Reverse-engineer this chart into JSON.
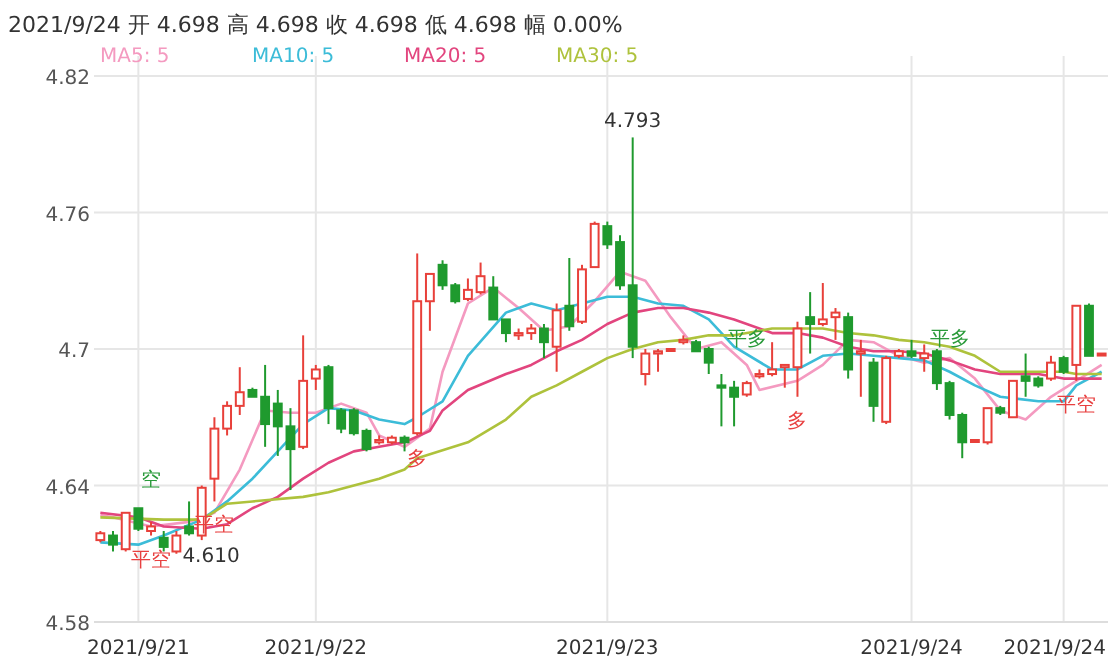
{
  "chart_data": {
    "type": "candlestick",
    "title": "2021/9/24 开 4.698 高 4.698 收 4.698 低 4.698 幅 0.00%",
    "categories": [
      null,
      null,
      null,
      "2021/9/21",
      null,
      null,
      null,
      null,
      null,
      null,
      null,
      null,
      null,
      null,
      null,
      null,
      null,
      "2021/9/22",
      null,
      null,
      null,
      null,
      null,
      null,
      null,
      null,
      null,
      null,
      null,
      null,
      null,
      null,
      null,
      null,
      null,
      null,
      null,
      null,
      null,
      null,
      "2021/9/23",
      null,
      null,
      null,
      null,
      null,
      null,
      null,
      null,
      null,
      null,
      null,
      null,
      null,
      null,
      null,
      null,
      null,
      null,
      null,
      null,
      null,
      null,
      null,
      "2021/9/24",
      null,
      null,
      null,
      null,
      null,
      null,
      null,
      null,
      null,
      null,
      null,
      "2021/9/24",
      null,
      null,
      null
    ],
    "ohlc": [
      [
        4.616,
        4.62,
        4.615,
        4.619
      ],
      [
        4.618,
        4.62,
        4.611,
        4.614
      ],
      [
        4.612,
        4.628,
        4.611,
        4.628
      ],
      [
        4.63,
        4.63,
        4.62,
        4.621
      ],
      [
        4.62,
        4.624,
        4.618,
        4.622
      ],
      [
        4.617,
        4.62,
        4.611,
        4.613
      ],
      [
        4.611,
        4.62,
        4.61,
        4.618
      ],
      [
        4.622,
        4.633,
        4.618,
        4.619
      ],
      [
        4.618,
        4.64,
        4.616,
        4.639
      ],
      [
        4.643,
        4.67,
        4.633,
        4.665
      ],
      [
        4.665,
        4.677,
        4.662,
        4.675
      ],
      [
        4.675,
        4.692,
        4.671,
        4.681
      ],
      [
        4.682,
        4.683,
        4.679,
        4.679
      ],
      [
        4.679,
        4.693,
        4.657,
        4.667
      ],
      [
        4.676,
        4.682,
        4.653,
        4.666
      ],
      [
        4.666,
        4.674,
        4.638,
        4.656
      ],
      [
        4.657,
        4.706,
        4.656,
        4.686
      ],
      [
        4.687,
        4.693,
        4.682,
        4.691
      ],
      [
        4.692,
        4.693,
        4.667,
        4.674
      ],
      [
        4.673,
        4.674,
        4.663,
        4.665
      ],
      [
        4.673,
        4.674,
        4.662,
        4.663
      ],
      [
        4.664,
        4.665,
        4.655,
        4.656
      ],
      [
        4.659,
        4.662,
        4.658,
        4.66
      ],
      [
        4.659,
        4.662,
        4.658,
        4.661
      ],
      [
        4.661,
        4.662,
        4.655,
        4.659
      ],
      [
        4.663,
        4.742,
        4.662,
        4.721
      ],
      [
        4.721,
        4.733,
        4.708,
        4.733
      ],
      [
        4.737,
        4.739,
        4.726,
        4.728
      ],
      [
        4.728,
        4.729,
        4.72,
        4.721
      ],
      [
        4.722,
        4.731,
        4.721,
        4.726
      ],
      [
        4.725,
        4.738,
        4.724,
        4.732
      ],
      [
        4.727,
        4.732,
        4.713,
        4.713
      ],
      [
        4.713,
        4.713,
        4.703,
        4.707
      ],
      [
        4.706,
        4.709,
        4.704,
        4.707
      ],
      [
        4.707,
        4.711,
        4.704,
        4.709
      ],
      [
        4.709,
        4.711,
        4.696,
        4.703
      ],
      [
        4.701,
        4.72,
        4.69,
        4.717
      ],
      [
        4.719,
        4.74,
        4.708,
        4.71
      ],
      [
        4.712,
        4.737,
        4.711,
        4.735
      ],
      [
        4.736,
        4.756,
        4.736,
        4.755
      ],
      [
        4.754,
        4.756,
        4.744,
        4.746
      ],
      [
        4.747,
        4.75,
        4.726,
        4.728
      ],
      [
        4.728,
        4.793,
        4.696,
        4.701
      ],
      [
        4.689,
        4.7,
        4.684,
        4.698
      ],
      [
        4.698,
        4.7,
        4.69,
        4.699
      ],
      [
        4.7,
        4.7,
        4.7,
        4.7
      ],
      [
        4.703,
        4.706,
        4.702,
        4.704
      ],
      [
        4.703,
        4.704,
        4.699,
        4.699
      ],
      [
        4.7,
        4.701,
        4.689,
        4.694
      ],
      [
        4.684,
        4.689,
        4.666,
        4.683
      ],
      [
        4.683,
        4.686,
        4.666,
        4.679
      ],
      [
        4.68,
        4.686,
        4.679,
        4.685
      ],
      [
        4.688,
        4.691,
        4.687,
        4.689
      ],
      [
        4.689,
        4.703,
        4.688,
        4.691
      ],
      [
        4.692,
        4.693,
        4.683,
        4.693
      ],
      [
        4.692,
        4.712,
        4.679,
        4.709
      ],
      [
        4.714,
        4.725,
        4.698,
        4.711
      ],
      [
        4.711,
        4.729,
        4.71,
        4.713
      ],
      [
        4.714,
        4.718,
        4.704,
        4.716
      ],
      [
        4.714,
        4.716,
        4.687,
        4.691
      ],
      [
        4.698,
        4.704,
        4.679,
        4.699
      ],
      [
        4.694,
        4.696,
        4.668,
        4.675
      ],
      [
        4.668,
        4.697,
        4.667,
        4.696
      ],
      [
        4.697,
        4.7,
        4.696,
        4.699
      ],
      [
        4.699,
        4.704,
        4.696,
        4.697
      ],
      [
        4.696,
        4.702,
        4.69,
        4.698
      ],
      [
        4.699,
        4.7,
        4.682,
        4.685
      ],
      [
        4.685,
        4.686,
        4.669,
        4.671
      ],
      [
        4.671,
        4.672,
        4.652,
        4.659
      ],
      [
        4.66,
        4.66,
        4.659,
        4.66
      ],
      [
        4.659,
        4.674,
        4.658,
        4.674
      ],
      [
        4.674,
        4.675,
        4.671,
        4.672
      ],
      [
        4.67,
        4.686,
        4.67,
        4.686
      ],
      [
        4.688,
        4.698,
        4.679,
        4.686
      ],
      [
        4.687,
        4.688,
        4.683,
        4.684
      ],
      [
        4.687,
        4.697,
        4.686,
        4.694
      ],
      [
        4.696,
        4.697,
        4.689,
        4.69
      ],
      [
        4.693,
        4.719,
        4.686,
        4.719
      ],
      [
        4.719,
        4.72,
        4.697,
        4.697
      ],
      [
        4.698,
        4.698,
        4.698,
        4.698
      ]
    ],
    "series": [
      {
        "name": "MA5: 5",
        "type": "line",
        "color": "#f49ac0",
        "values": [
          4.627,
          4.626,
          null,
          null,
          4.622,
          null,
          null,
          4.624,
          null,
          4.628,
          null,
          4.647,
          null,
          4.673,
          null,
          4.672,
          null,
          4.672,
          null,
          4.676,
          null,
          4.672,
          4.662,
          null,
          4.657,
          null,
          4.665,
          4.69,
          null,
          4.72,
          null,
          4.727,
          null,
          4.718,
          null,
          4.708,
          null,
          4.71,
          null,
          4.721,
          null,
          4.734,
          null,
          4.73,
          null,
          4.714,
          null,
          4.7,
          null,
          4.703,
          null,
          4.693,
          4.682,
          null,
          null,
          4.686,
          null,
          4.693,
          null,
          4.704,
          null,
          4.703,
          null,
          4.697,
          null,
          4.694,
          null,
          4.696,
          null,
          4.687,
          null,
          4.673,
          null,
          4.669,
          null,
          4.679,
          null,
          4.686,
          null,
          4.693
        ]
      },
      {
        "name": "MA10: 5",
        "type": "line",
        "color": "#3cbcd8",
        "values": [
          4.615,
          null,
          null,
          4.614,
          null,
          4.618,
          null,
          null,
          4.625,
          null,
          4.633,
          null,
          4.643,
          null,
          4.655,
          null,
          4.667,
          null,
          4.674,
          null,
          4.673,
          null,
          4.669,
          null,
          4.667,
          4.67,
          null,
          4.677,
          null,
          4.697,
          null,
          null,
          4.716,
          null,
          4.72,
          null,
          4.717,
          null,
          4.72,
          null,
          4.723,
          null,
          4.723,
          null,
          4.72,
          null,
          4.719,
          null,
          4.713,
          null,
          4.701,
          null,
          null,
          4.691,
          null,
          4.691,
          null,
          4.697,
          null,
          4.698,
          null,
          4.697,
          null,
          4.696,
          null,
          4.695,
          null,
          4.69,
          null,
          4.684,
          null,
          4.679,
          null,
          null,
          4.677,
          null,
          4.677,
          4.684,
          null,
          4.69
        ]
      },
      {
        "name": "MA20: 5",
        "type": "line",
        "color": "#e2457e",
        "values": [
          4.628,
          null,
          null,
          4.626,
          null,
          4.622,
          null,
          null,
          4.621,
          null,
          4.623,
          null,
          4.63,
          null,
          4.635,
          null,
          4.643,
          null,
          4.65,
          null,
          4.655,
          null,
          4.657,
          null,
          4.659,
          null,
          4.664,
          4.673,
          null,
          4.682,
          null,
          null,
          4.689,
          null,
          4.693,
          null,
          4.699,
          null,
          4.704,
          null,
          4.711,
          null,
          4.716,
          null,
          4.718,
          null,
          4.718,
          null,
          4.716,
          null,
          4.713,
          null,
          null,
          4.707,
          null,
          4.707,
          null,
          4.705,
          null,
          4.701,
          null,
          4.699,
          null,
          4.699,
          null,
          4.698,
          null,
          4.695,
          null,
          4.691,
          null,
          4.689,
          null,
          null,
          4.689,
          null,
          4.687,
          null,
          null,
          4.687
        ]
      },
      {
        "name": "MA30: 5",
        "type": "line",
        "color": "#aec23c",
        "values": [
          4.626,
          null,
          null,
          null,
          null,
          4.625,
          null,
          null,
          4.625,
          null,
          4.632,
          null,
          4.633,
          null,
          null,
          null,
          4.635,
          null,
          4.637,
          null,
          4.64,
          null,
          4.643,
          null,
          4.647,
          4.652,
          null,
          null,
          null,
          4.659,
          null,
          null,
          4.669,
          null,
          4.679,
          null,
          4.684,
          null,
          4.69,
          null,
          4.696,
          null,
          4.7,
          null,
          4.703,
          null,
          4.704,
          null,
          4.706,
          null,
          4.706,
          null,
          null,
          4.709,
          null,
          4.709,
          null,
          4.709,
          null,
          4.707,
          null,
          4.706,
          null,
          4.704,
          null,
          4.703,
          null,
          4.701,
          null,
          4.697,
          null,
          4.69,
          null,
          null,
          4.69,
          null,
          4.69,
          4.689,
          null,
          4.689
        ]
      }
    ],
    "ylim": [
      4.58,
      4.82
    ],
    "yticks": [
      4.58,
      4.64,
      4.7,
      4.76,
      4.82
    ],
    "grid": true,
    "legend": "top left",
    "annotations": [
      {
        "text": "4.793",
        "y": 4.793
      },
      "4.610",
      "空",
      "平空",
      "平空",
      "多",
      "平多",
      "多",
      "平多",
      "平空"
    ]
  }
}
